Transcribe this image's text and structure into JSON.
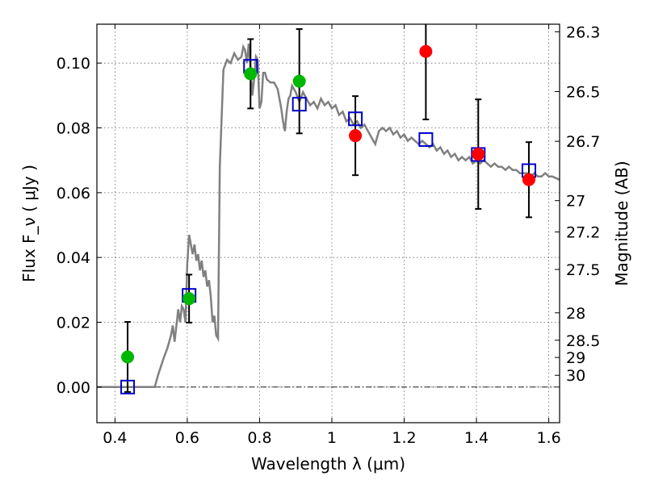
{
  "chart_data": {
    "type": "scatter",
    "xlabel": "Wavelength  λ (μm)",
    "ylabel": "Flux  F_ν  ( μJy )",
    "ylabel_right": "Magnitude (AB)",
    "xlim": [
      0.35,
      1.63
    ],
    "ylim": [
      -0.011,
      0.112
    ],
    "grid": true,
    "x_ticks": [
      {
        "value": 0.4,
        "label": "0.4"
      },
      {
        "value": 0.6,
        "label": "0.6"
      },
      {
        "value": 0.8,
        "label": "0.8"
      },
      {
        "value": 1.0,
        "label": "1"
      },
      {
        "value": 1.2,
        "label": "1.2"
      },
      {
        "value": 1.4,
        "label": "1.4"
      },
      {
        "value": 1.6,
        "label": "1.6"
      }
    ],
    "y_ticks": [
      {
        "value": 0.0,
        "label": "0.00"
      },
      {
        "value": 0.02,
        "label": "0.02"
      },
      {
        "value": 0.04,
        "label": "0.04"
      },
      {
        "value": 0.06,
        "label": "0.06"
      },
      {
        "value": 0.08,
        "label": "0.08"
      },
      {
        "value": 0.1,
        "label": "0.10"
      }
    ],
    "mag_ticks": [
      {
        "value": 26.3,
        "label": "26.3"
      },
      {
        "value": 26.5,
        "label": "26.5"
      },
      {
        "value": 26.7,
        "label": "26.7"
      },
      {
        "value": 27.0,
        "label": "27"
      },
      {
        "value": 27.2,
        "label": "27.2"
      },
      {
        "value": 27.5,
        "label": "27.5"
      },
      {
        "value": 28.0,
        "label": "28"
      },
      {
        "value": 28.5,
        "label": "28.5"
      },
      {
        "value": 29.0,
        "label": "29"
      },
      {
        "value": 30.0,
        "label": "30"
      }
    ],
    "series": [
      {
        "kind": "line",
        "color": "#808080",
        "points": [
          [
            0.35,
            0.0
          ],
          [
            0.51,
            0.0
          ],
          [
            0.52,
            0.004
          ],
          [
            0.535,
            0.009
          ],
          [
            0.545,
            0.012
          ],
          [
            0.555,
            0.016
          ],
          [
            0.56,
            0.019
          ],
          [
            0.565,
            0.014
          ],
          [
            0.57,
            0.019
          ],
          [
            0.575,
            0.024
          ],
          [
            0.58,
            0.02
          ],
          [
            0.585,
            0.025
          ],
          [
            0.59,
            0.024
          ],
          [
            0.595,
            0.02
          ],
          [
            0.6,
            0.038
          ],
          [
            0.605,
            0.047
          ],
          [
            0.61,
            0.044
          ],
          [
            0.615,
            0.041
          ],
          [
            0.62,
            0.044
          ],
          [
            0.625,
            0.039
          ],
          [
            0.63,
            0.041
          ],
          [
            0.635,
            0.036
          ],
          [
            0.64,
            0.039
          ],
          [
            0.645,
            0.034
          ],
          [
            0.65,
            0.036
          ],
          [
            0.655,
            0.031
          ],
          [
            0.66,
            0.033
          ],
          [
            0.665,
            0.028
          ],
          [
            0.67,
            0.02
          ],
          [
            0.675,
            0.022
          ],
          [
            0.68,
            0.016
          ],
          [
            0.685,
            0.015
          ],
          [
            0.69,
            0.068
          ],
          [
            0.7,
            0.098
          ],
          [
            0.71,
            0.101
          ],
          [
            0.72,
            0.1
          ],
          [
            0.73,
            0.103
          ],
          [
            0.74,
            0.101
          ],
          [
            0.75,
            0.102
          ],
          [
            0.755,
            0.105
          ],
          [
            0.76,
            0.104
          ],
          [
            0.765,
            0.1
          ],
          [
            0.77,
            0.106
          ],
          [
            0.775,
            0.098
          ],
          [
            0.78,
            0.09
          ],
          [
            0.785,
            0.095
          ],
          [
            0.79,
            0.102
          ],
          [
            0.795,
            0.101
          ],
          [
            0.8,
            0.086
          ],
          [
            0.805,
            0.088
          ],
          [
            0.81,
            0.097
          ],
          [
            0.815,
            0.097
          ],
          [
            0.82,
            0.095
          ],
          [
            0.83,
            0.094
          ],
          [
            0.84,
            0.094
          ],
          [
            0.85,
            0.092
          ],
          [
            0.86,
            0.086
          ],
          [
            0.865,
            0.082
          ],
          [
            0.87,
            0.079
          ],
          [
            0.875,
            0.085
          ],
          [
            0.88,
            0.089
          ],
          [
            0.885,
            0.09
          ],
          [
            0.89,
            0.093
          ],
          [
            0.9,
            0.091
          ],
          [
            0.91,
            0.088
          ],
          [
            0.92,
            0.091
          ],
          [
            0.93,
            0.089
          ],
          [
            0.94,
            0.087
          ],
          [
            0.95,
            0.088
          ],
          [
            0.96,
            0.086
          ],
          [
            0.97,
            0.089
          ],
          [
            0.98,
            0.087
          ],
          [
            0.99,
            0.088
          ],
          [
            1.0,
            0.086
          ],
          [
            1.01,
            0.087
          ],
          [
            1.02,
            0.084
          ],
          [
            1.03,
            0.085
          ],
          [
            1.04,
            0.082
          ],
          [
            1.05,
            0.083
          ],
          [
            1.06,
            0.081
          ],
          [
            1.07,
            0.082
          ],
          [
            1.08,
            0.08
          ],
          [
            1.09,
            0.081
          ],
          [
            1.1,
            0.079
          ],
          [
            1.11,
            0.077
          ],
          [
            1.12,
            0.075
          ],
          [
            1.13,
            0.079
          ],
          [
            1.14,
            0.08
          ],
          [
            1.15,
            0.079
          ],
          [
            1.16,
            0.08
          ],
          [
            1.17,
            0.078
          ],
          [
            1.18,
            0.079
          ],
          [
            1.19,
            0.077
          ],
          [
            1.2,
            0.078
          ],
          [
            1.21,
            0.076
          ],
          [
            1.22,
            0.077
          ],
          [
            1.23,
            0.076
          ],
          [
            1.24,
            0.075
          ],
          [
            1.25,
            0.076
          ],
          [
            1.26,
            0.075
          ],
          [
            1.27,
            0.074
          ],
          [
            1.28,
            0.075
          ],
          [
            1.29,
            0.073
          ],
          [
            1.3,
            0.074
          ],
          [
            1.31,
            0.072
          ],
          [
            1.32,
            0.073
          ],
          [
            1.33,
            0.071
          ],
          [
            1.34,
            0.072
          ],
          [
            1.35,
            0.07
          ],
          [
            1.36,
            0.071
          ],
          [
            1.37,
            0.07
          ],
          [
            1.38,
            0.071
          ],
          [
            1.39,
            0.069
          ],
          [
            1.4,
            0.07
          ],
          [
            1.41,
            0.069
          ],
          [
            1.42,
            0.07
          ],
          [
            1.43,
            0.069
          ],
          [
            1.44,
            0.068
          ],
          [
            1.45,
            0.069
          ],
          [
            1.46,
            0.068
          ],
          [
            1.47,
            0.068
          ],
          [
            1.48,
            0.067
          ],
          [
            1.49,
            0.068
          ],
          [
            1.5,
            0.067
          ],
          [
            1.51,
            0.067
          ],
          [
            1.52,
            0.066
          ],
          [
            1.53,
            0.066
          ],
          [
            1.54,
            0.066
          ],
          [
            1.55,
            0.065
          ],
          [
            1.56,
            0.066
          ],
          [
            1.57,
            0.065
          ],
          [
            1.58,
            0.065
          ],
          [
            1.59,
            0.066
          ],
          [
            1.6,
            0.065
          ],
          [
            1.61,
            0.065
          ],
          [
            1.63,
            0.064
          ]
        ]
      },
      {
        "kind": "errorbar-points",
        "color": "#00b800",
        "points": [
          {
            "x": 0.435,
            "y": 0.0093,
            "yerr": 0.0108
          },
          {
            "x": 0.605,
            "y": 0.0273,
            "yerr": 0.0074
          },
          {
            "x": 0.775,
            "y": 0.0967,
            "yerr": 0.0107
          },
          {
            "x": 0.91,
            "y": 0.0944,
            "yerr": 0.0161
          }
        ]
      },
      {
        "kind": "errorbar-points",
        "color": "#ff0000",
        "points": [
          {
            "x": 1.065,
            "y": 0.0776,
            "yerr": 0.0122
          },
          {
            "x": 1.26,
            "y": 0.1036,
            "yerr": 0.021
          },
          {
            "x": 1.405,
            "y": 0.0719,
            "yerr": 0.0169
          },
          {
            "x": 1.545,
            "y": 0.064,
            "yerr": 0.0116
          }
        ]
      },
      {
        "kind": "squares",
        "color": "#0000cc",
        "points": [
          [
            0.435,
            0.0
          ],
          [
            0.605,
            0.0283
          ],
          [
            0.775,
            0.099
          ],
          [
            0.91,
            0.0873
          ],
          [
            1.065,
            0.0828
          ],
          [
            1.26,
            0.0764
          ],
          [
            1.405,
            0.0718
          ],
          [
            1.545,
            0.0668
          ]
        ]
      }
    ]
  }
}
